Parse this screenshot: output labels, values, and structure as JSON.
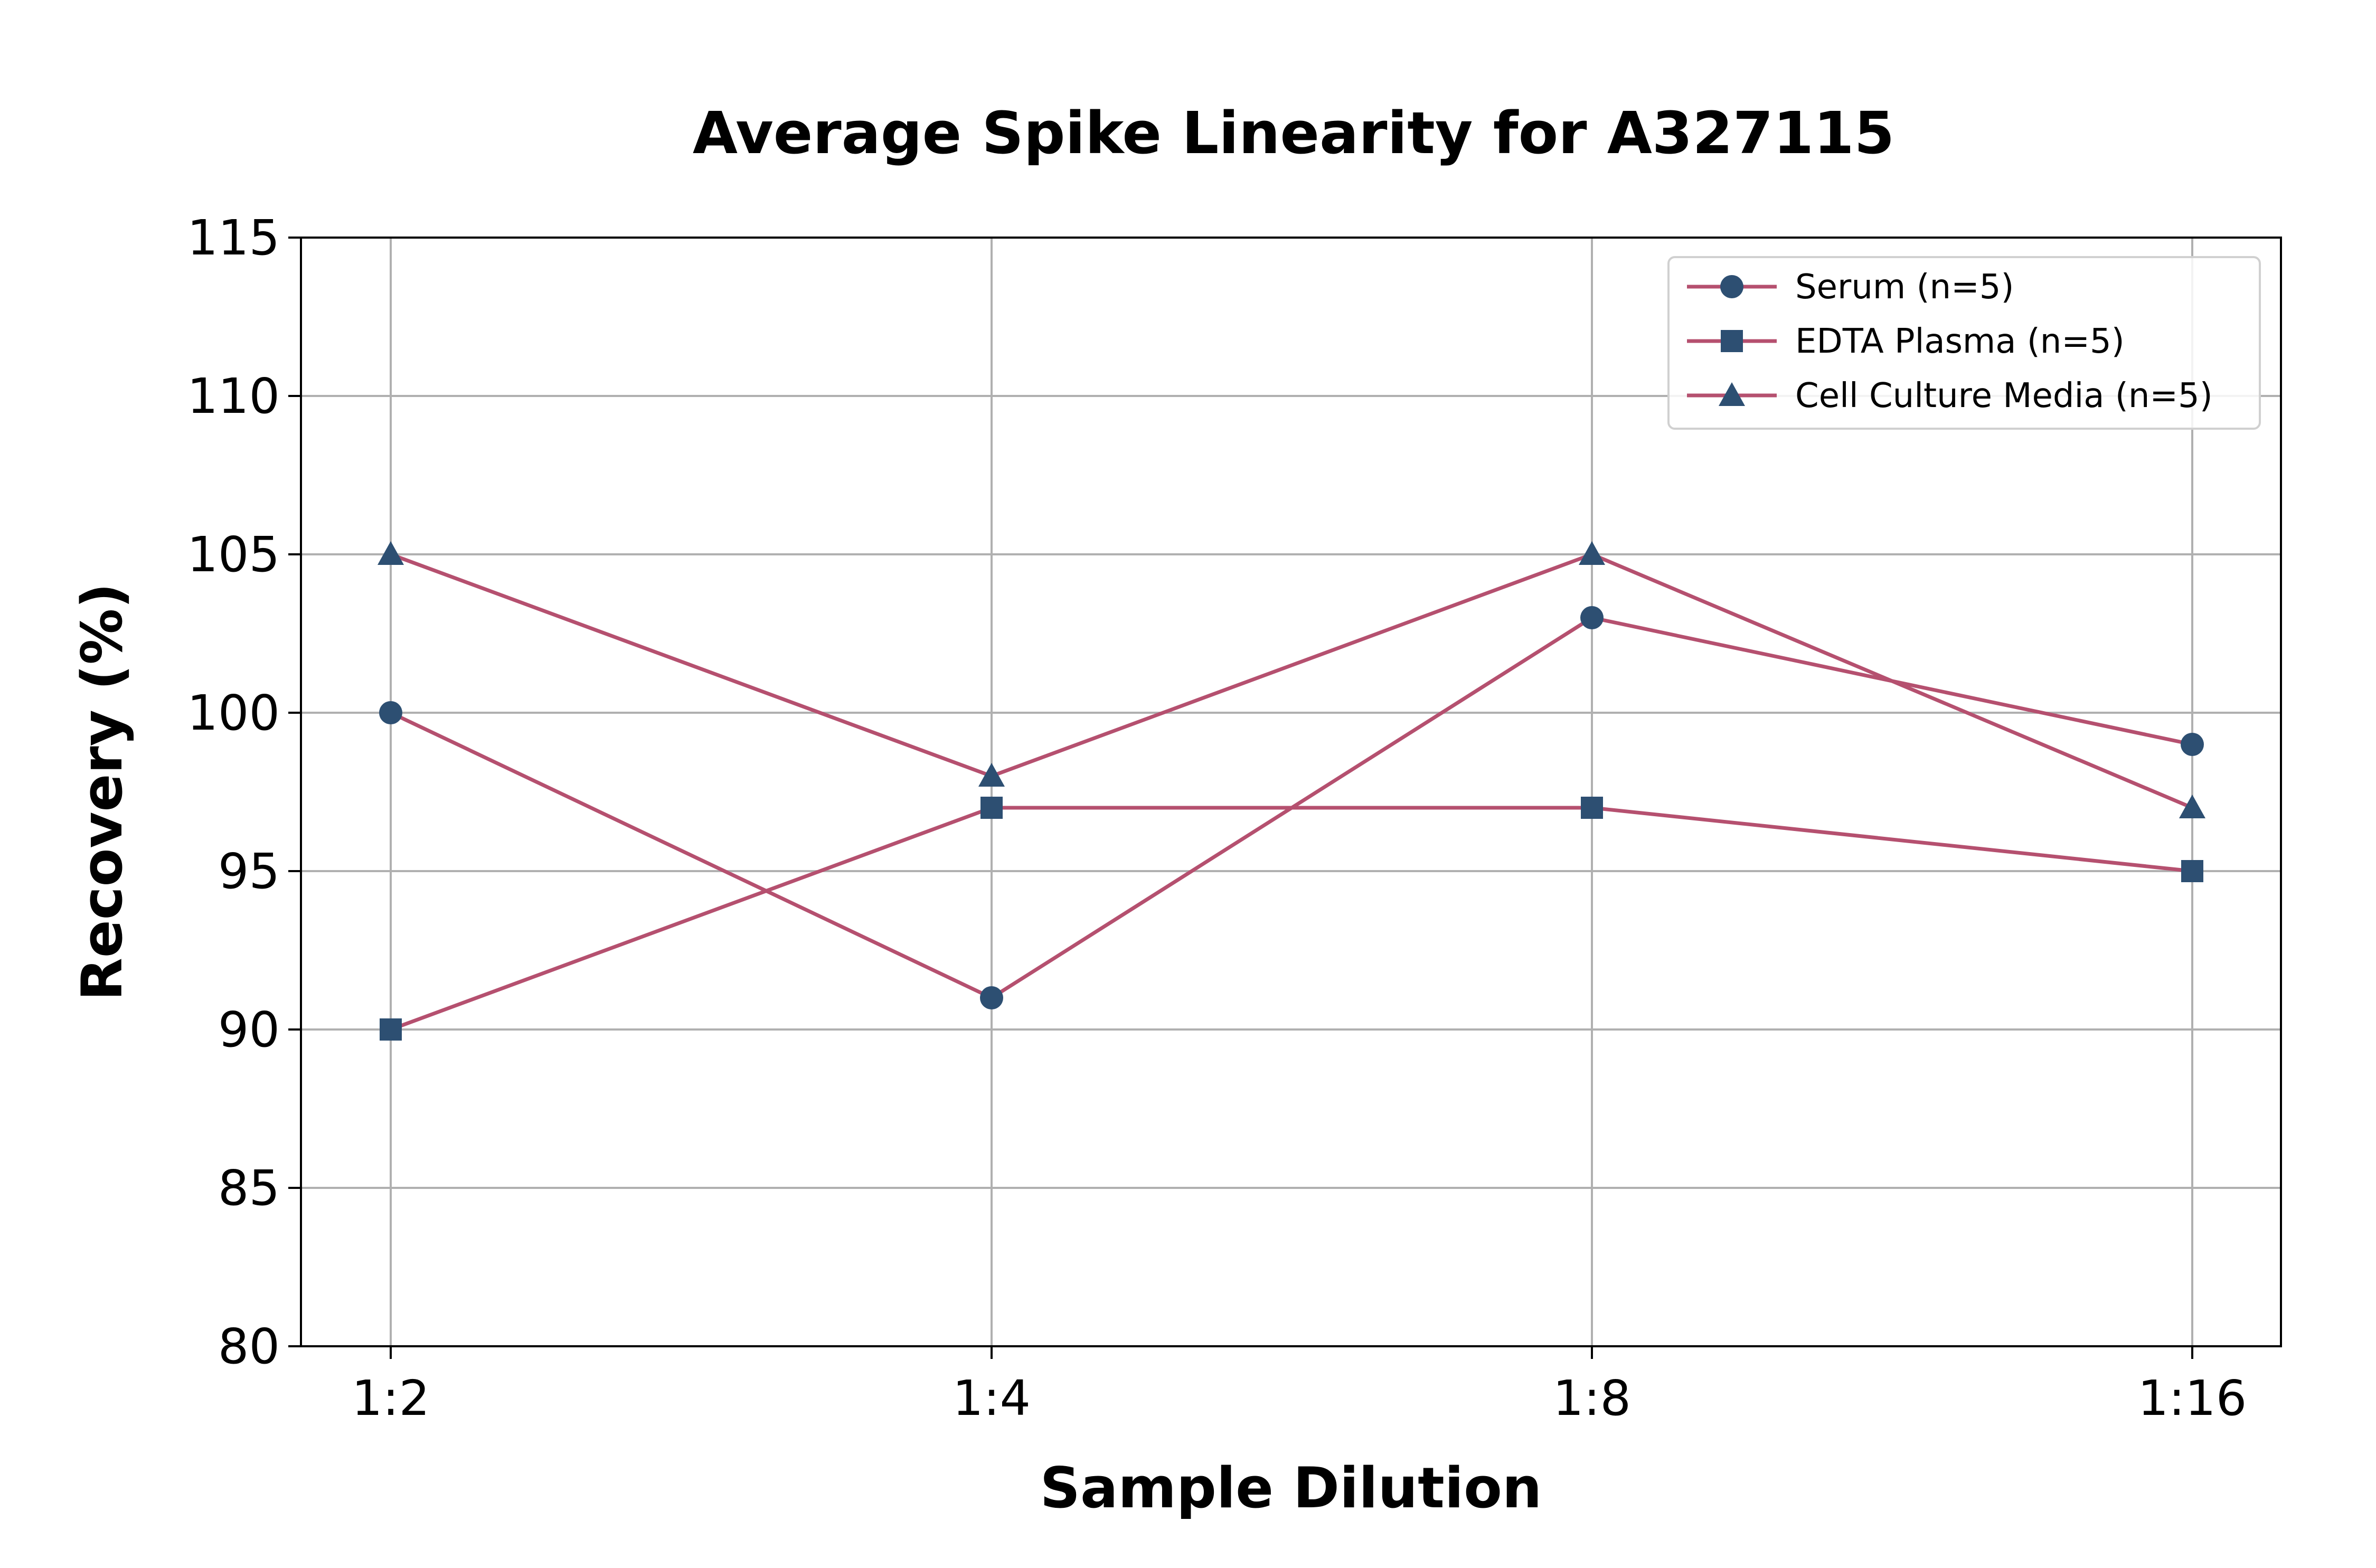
{
  "chart_data": {
    "type": "line",
    "title": "Average Spike Linearity for A327115",
    "xlabel": "Sample Dilution",
    "ylabel": "Recovery (%)",
    "categories": [
      "1:2",
      "1:4",
      "1:8",
      "1:16"
    ],
    "ylim": [
      80,
      115
    ],
    "yticks": [
      80,
      85,
      90,
      95,
      100,
      105,
      110,
      115
    ],
    "grid": true,
    "legend_position": "top-right",
    "line_color": "#b5506f",
    "marker_color": "#2d4f72",
    "series": [
      {
        "name": "Serum (n=5)",
        "marker": "circle",
        "values": [
          100,
          91,
          103,
          99
        ]
      },
      {
        "name": "EDTA Plasma (n=5)",
        "marker": "square",
        "values": [
          90,
          97,
          97,
          95
        ]
      },
      {
        "name": "Cell Culture Media (n=5)",
        "marker": "triangle",
        "values": [
          105,
          98,
          105,
          97
        ]
      }
    ]
  }
}
